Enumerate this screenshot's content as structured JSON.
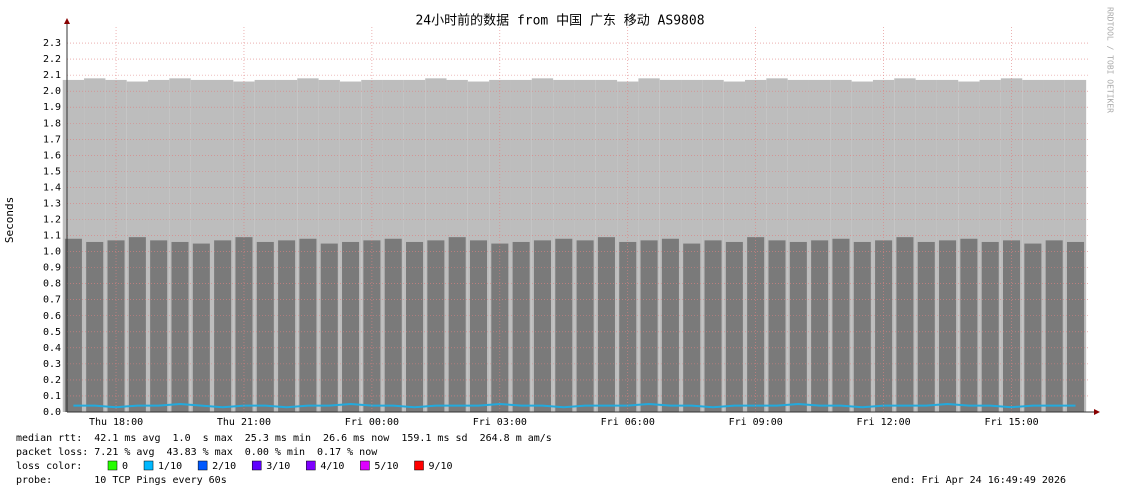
{
  "chart_data": {
    "type": "smoke",
    "title": "24小时前的数据 from 中国 广东 移动 AS9808",
    "y_label": "Seconds",
    "watermark": "RRDTOOL / TOBI OETIKER",
    "x": [
      17.0,
      17.5,
      18.0,
      18.5,
      19.0,
      19.5,
      20.0,
      20.5,
      21.0,
      21.5,
      22.0,
      22.5,
      23.0,
      23.5,
      24.0,
      24.5,
      25.0,
      25.5,
      26.0,
      26.5,
      27.0,
      27.5,
      28.0,
      28.5,
      29.0,
      29.5,
      30.0,
      30.5,
      31.0,
      31.5,
      32.0,
      32.5,
      33.0,
      33.5,
      34.0,
      34.5,
      35.0,
      35.5,
      36.0,
      36.5,
      37.0,
      37.5,
      38.0,
      38.5,
      39.0,
      39.5,
      40.0,
      40.5
    ],
    "max": [
      2.07,
      2.08,
      2.07,
      2.06,
      2.07,
      2.08,
      2.07,
      2.07,
      2.06,
      2.07,
      2.07,
      2.08,
      2.07,
      2.06,
      2.07,
      2.07,
      2.07,
      2.08,
      2.07,
      2.06,
      2.07,
      2.07,
      2.08,
      2.07,
      2.07,
      2.07,
      2.06,
      2.08,
      2.07,
      2.07,
      2.07,
      2.06,
      2.07,
      2.08,
      2.07,
      2.07,
      2.07,
      2.06,
      2.07,
      2.08,
      2.07,
      2.07,
      2.06,
      2.07,
      2.08,
      2.07,
      2.07,
      2.07
    ],
    "upper": [
      1.08,
      1.06,
      1.07,
      1.09,
      1.07,
      1.06,
      1.05,
      1.07,
      1.09,
      1.06,
      1.07,
      1.08,
      1.05,
      1.06,
      1.07,
      1.08,
      1.06,
      1.07,
      1.09,
      1.07,
      1.05,
      1.06,
      1.07,
      1.08,
      1.07,
      1.09,
      1.06,
      1.07,
      1.08,
      1.05,
      1.07,
      1.06,
      1.09,
      1.07,
      1.06,
      1.07,
      1.08,
      1.06,
      1.07,
      1.09,
      1.06,
      1.07,
      1.08,
      1.06,
      1.07,
      1.05,
      1.07,
      1.06
    ],
    "median": [
      0.04,
      0.04,
      0.03,
      0.04,
      0.04,
      0.05,
      0.04,
      0.03,
      0.04,
      0.04,
      0.03,
      0.04,
      0.04,
      0.05,
      0.04,
      0.04,
      0.03,
      0.04,
      0.04,
      0.04,
      0.05,
      0.04,
      0.04,
      0.03,
      0.04,
      0.04,
      0.04,
      0.05,
      0.04,
      0.04,
      0.03,
      0.04,
      0.04,
      0.04,
      0.05,
      0.04,
      0.04,
      0.03,
      0.04,
      0.04,
      0.04,
      0.05,
      0.04,
      0.04,
      0.03,
      0.04,
      0.04,
      0.04
    ],
    "median_color": "#22aadd",
    "max_color": "#bdbdbd",
    "upper_color": "#7a7a7a",
    "xlim": [
      16.85,
      40.84
    ],
    "xticks": [
      {
        "value": 18,
        "label": "Thu 18:00"
      },
      {
        "value": 21,
        "label": "Thu 21:00"
      },
      {
        "value": 24,
        "label": "Fri 00:00"
      },
      {
        "value": 27,
        "label": "Fri 03:00"
      },
      {
        "value": 30,
        "label": "Fri 06:00"
      },
      {
        "value": 33,
        "label": "Fri 09:00"
      },
      {
        "value": 36,
        "label": "Fri 12:00"
      },
      {
        "value": 39,
        "label": "Fri 15:00"
      }
    ],
    "ylim": [
      0,
      2.4
    ],
    "yticks": [
      {
        "value": 0,
        "label": "0.0"
      },
      0.1,
      0.2,
      0.3,
      0.4,
      0.5,
      0.6,
      0.7,
      0.8,
      0.9,
      {
        "value": 1,
        "label": "1.0"
      },
      1.1,
      1.2,
      1.3,
      1.4,
      1.5,
      1.6,
      1.7,
      1.8,
      1.9,
      {
        "value": 2,
        "label": "2.0"
      },
      2.1,
      2.2,
      2.3
    ],
    "grid": true,
    "stats": [
      "median rtt:  42.1 ms avg  1.0  s max  25.3 ms min  26.6 ms now  159.1 ms sd  264.8 m am/s",
      "packet loss: 7.21 % avg  43.83 % max  0.00 % min  0.17 % now"
    ],
    "loss_label": "loss color:",
    "loss_legend": [
      {
        "name": "0",
        "color": "#26ff00"
      },
      {
        "name": "1/10",
        "color": "#00b8ff"
      },
      {
        "name": "2/10",
        "color": "#0059ff"
      },
      {
        "name": "3/10",
        "color": "#5e00ff"
      },
      {
        "name": "4/10",
        "color": "#7e00ff"
      },
      {
        "name": "5/10",
        "color": "#dd00ff"
      },
      {
        "name": "9/10",
        "color": "#ff0000"
      }
    ],
    "probe": "probe:       10 TCP Pings every 60s",
    "end": "end: Fri Apr 24 16:49:49 2026"
  }
}
